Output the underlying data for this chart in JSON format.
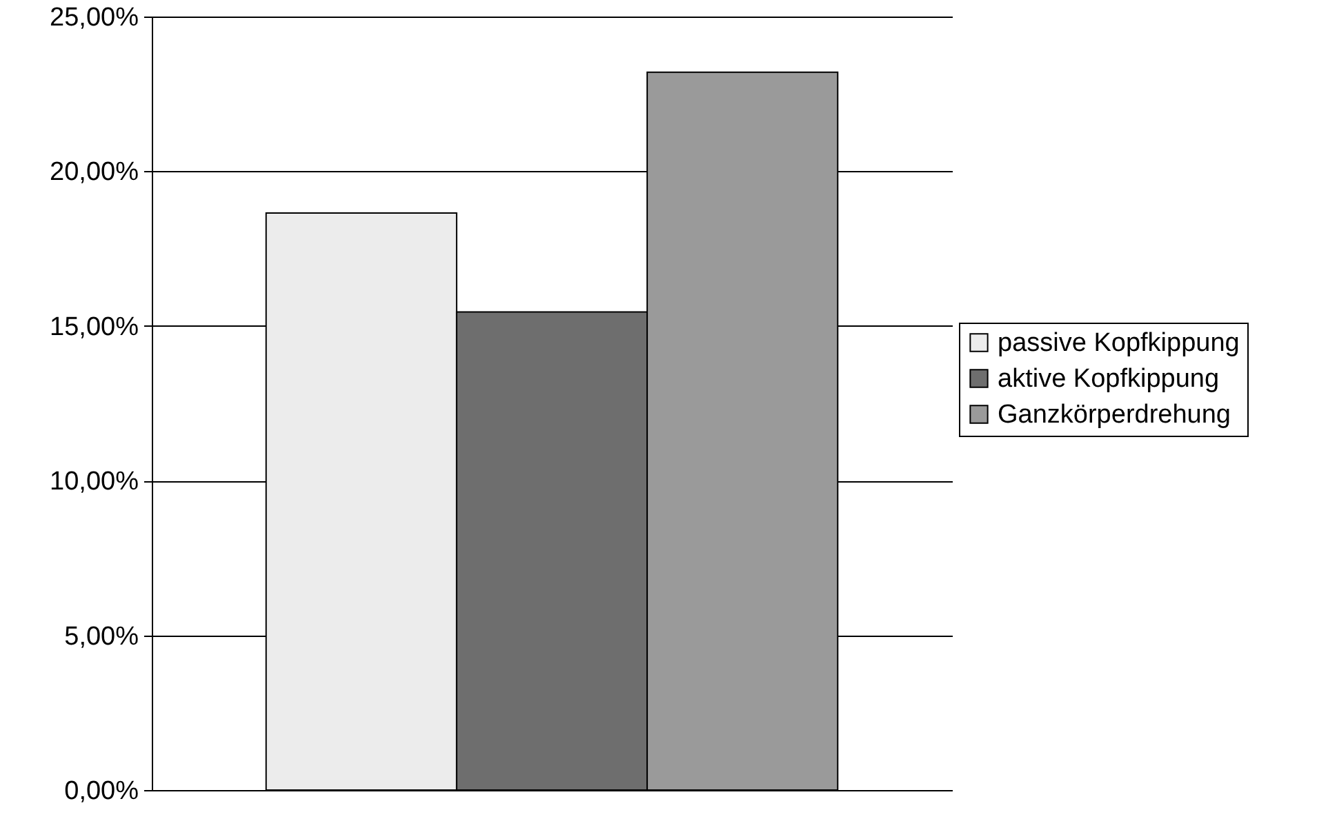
{
  "chart_data": {
    "type": "bar",
    "categories": [
      null
    ],
    "series": [
      {
        "name": "passive Kopfkippung",
        "color": "#ececec",
        "values": [
          18.65
        ]
      },
      {
        "name": "aktive Kopfkippung",
        "color": "#6e6e6e",
        "values": [
          15.45
        ]
      },
      {
        "name": "Ganzkörperdrehung",
        "color": "#9a9a9a",
        "values": [
          23.2
        ]
      }
    ],
    "ylim": [
      0,
      25
    ],
    "yticks": [
      {
        "value": 0,
        "label": "0,00%"
      },
      {
        "value": 5,
        "label": "5,00%"
      },
      {
        "value": 10,
        "label": "10,00%"
      },
      {
        "value": 15,
        "label": "15,00%"
      },
      {
        "value": 20,
        "label": "20,00%"
      },
      {
        "value": 25,
        "label": "25,00%"
      }
    ],
    "grid": "y",
    "legend": "right"
  }
}
